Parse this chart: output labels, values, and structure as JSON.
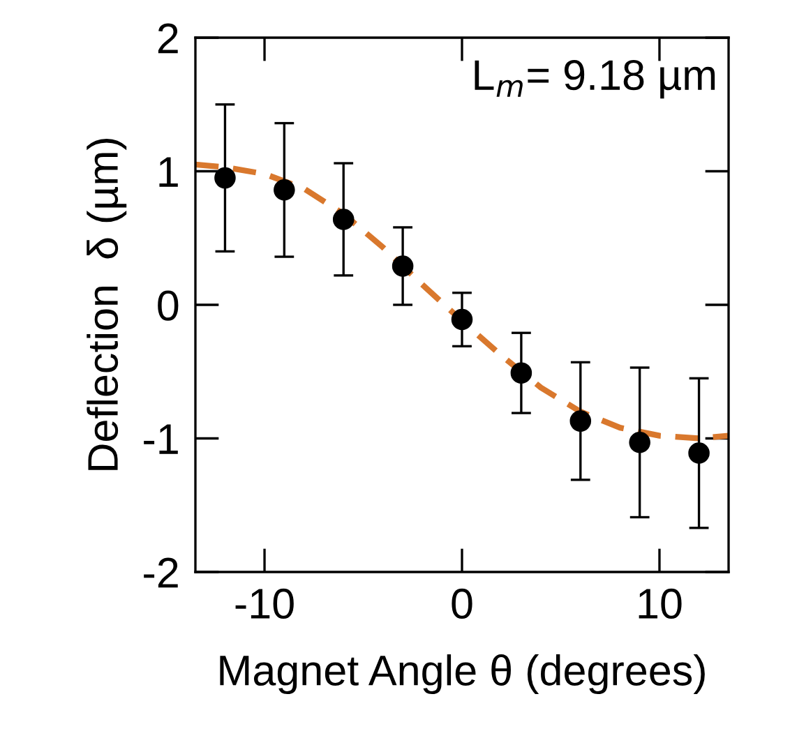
{
  "chart_data": {
    "type": "scatter",
    "xlabel": "Magnet Angle θ (degrees)",
    "ylabel": "Deflection  δ (µm)",
    "annotations": [
      "L$_{m}$= 9.18 µm"
    ],
    "xlim": [
      -13.5,
      13.5
    ],
    "ylim": [
      -2,
      2
    ],
    "xticks": [
      -10,
      0,
      10
    ],
    "yticks": [
      -2,
      -1,
      0,
      1,
      2
    ],
    "grid": false,
    "series": [
      {
        "color": "#000000",
        "marker": "circle",
        "x": [
          -12,
          -9,
          -6,
          -3,
          0,
          3,
          6,
          9,
          12
        ],
        "values": [
          0.95,
          0.86,
          0.64,
          0.29,
          -0.11,
          -0.51,
          -0.87,
          -1.03,
          -1.11
        ],
        "errors": [
          0.55,
          0.5,
          0.42,
          0.29,
          0.2,
          0.3,
          0.44,
          0.56,
          0.56
        ]
      },
      {
        "type": "line",
        "color": "#d9782d",
        "line_style": "dashed",
        "x": [
          -13.5,
          -12,
          -10,
          -8,
          -6,
          -4,
          -2,
          0,
          2,
          4,
          6,
          8,
          10,
          12,
          13.5
        ],
        "values": [
          1.05,
          1.03,
          0.98,
          0.87,
          0.68,
          0.43,
          0.15,
          -0.12,
          -0.38,
          -0.62,
          -0.8,
          -0.92,
          -0.98,
          -1.0,
          -0.98
        ]
      }
    ]
  }
}
